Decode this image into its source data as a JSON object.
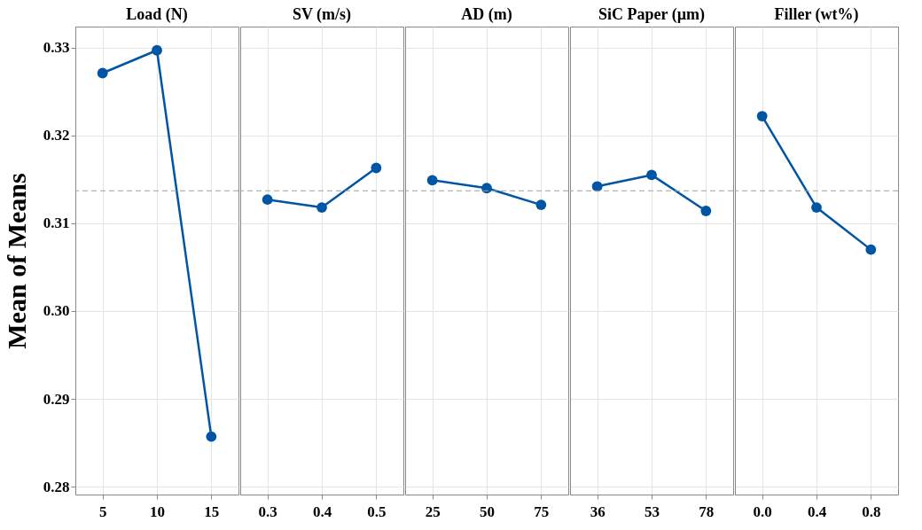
{
  "chart_data": [
    {
      "type": "line",
      "title": "Load (N)",
      "ylabel": "Mean of Means",
      "categories": [
        "5",
        "10",
        "15"
      ],
      "series": [
        {
          "color": "#0055a5",
          "values": [
            0.3271,
            0.3297,
            0.2857
          ]
        }
      ],
      "ylim": [
        0.2791,
        0.3324
      ],
      "yticks": [
        {
          "value": 0.28,
          "label": "0.28"
        },
        {
          "value": 0.29,
          "label": "0.29"
        },
        {
          "value": 0.3,
          "label": "0.30"
        },
        {
          "value": 0.31,
          "label": "0.31"
        },
        {
          "value": 0.32,
          "label": "0.32"
        },
        {
          "value": 0.33,
          "label": "0.33"
        }
      ],
      "ref_lines": [
        {
          "axis": "y",
          "value": 0.3137,
          "color": "#a0a0a0",
          "line_style": "dashed"
        }
      ],
      "grid": true,
      "marker": "circle"
    },
    {
      "type": "line",
      "title": "SV (m/s)",
      "categories": [
        "0.3",
        "0.4",
        "0.5"
      ],
      "series": [
        {
          "color": "#0055a5",
          "values": [
            0.3127,
            0.3118,
            0.3163
          ]
        }
      ],
      "ylim": [
        0.2791,
        0.3324
      ],
      "yticks": [
        {
          "value": 0.28,
          "label": null
        },
        {
          "value": 0.29,
          "label": null
        },
        {
          "value": 0.3,
          "label": null
        },
        {
          "value": 0.31,
          "label": null
        },
        {
          "value": 0.32,
          "label": null
        },
        {
          "value": 0.33,
          "label": null
        }
      ],
      "ref_lines": [
        {
          "axis": "y",
          "value": 0.3137,
          "color": "#a0a0a0",
          "line_style": "dashed"
        }
      ],
      "grid": true,
      "marker": "circle",
      "tick_labels": "x"
    },
    {
      "type": "line",
      "title": "AD (m)",
      "categories": [
        "25",
        "50",
        "75"
      ],
      "series": [
        {
          "color": "#0055a5",
          "values": [
            0.3149,
            0.314,
            0.3121
          ]
        }
      ],
      "ylim": [
        0.2791,
        0.3324
      ],
      "yticks": [
        {
          "value": 0.28,
          "label": null
        },
        {
          "value": 0.29,
          "label": null
        },
        {
          "value": 0.3,
          "label": null
        },
        {
          "value": 0.31,
          "label": null
        },
        {
          "value": 0.32,
          "label": null
        },
        {
          "value": 0.33,
          "label": null
        }
      ],
      "ref_lines": [
        {
          "axis": "y",
          "value": 0.3137,
          "color": "#a0a0a0",
          "line_style": "dashed"
        }
      ],
      "grid": true,
      "marker": "circle",
      "tick_labels": "x"
    },
    {
      "type": "line",
      "title": "SiC Paper (µm)",
      "categories": [
        "36",
        "53",
        "78"
      ],
      "series": [
        {
          "color": "#0055a5",
          "values": [
            0.3142,
            0.3155,
            0.3114
          ]
        }
      ],
      "ylim": [
        0.2791,
        0.3324
      ],
      "yticks": [
        {
          "value": 0.28,
          "label": null
        },
        {
          "value": 0.29,
          "label": null
        },
        {
          "value": 0.3,
          "label": null
        },
        {
          "value": 0.31,
          "label": null
        },
        {
          "value": 0.32,
          "label": null
        },
        {
          "value": 0.33,
          "label": null
        }
      ],
      "ref_lines": [
        {
          "axis": "y",
          "value": 0.3137,
          "color": "#a0a0a0",
          "line_style": "dashed"
        }
      ],
      "grid": true,
      "marker": "circle",
      "tick_labels": "x"
    },
    {
      "type": "line",
      "title": "Filler (wt%)",
      "categories": [
        "0.0",
        "0.4",
        "0.8"
      ],
      "series": [
        {
          "color": "#0055a5",
          "values": [
            0.3222,
            0.3118,
            0.307
          ]
        }
      ],
      "ylim": [
        0.2791,
        0.3324
      ],
      "yticks": [
        {
          "value": 0.28,
          "label": null
        },
        {
          "value": 0.29,
          "label": null
        },
        {
          "value": 0.3,
          "label": null
        },
        {
          "value": 0.31,
          "label": null
        },
        {
          "value": 0.32,
          "label": null
        },
        {
          "value": 0.33,
          "label": null
        }
      ],
      "ref_lines": [
        {
          "axis": "y",
          "value": 0.3137,
          "color": "#a0a0a0",
          "line_style": "dashed"
        }
      ],
      "grid": true,
      "marker": "circle",
      "tick_labels": "x"
    }
  ]
}
